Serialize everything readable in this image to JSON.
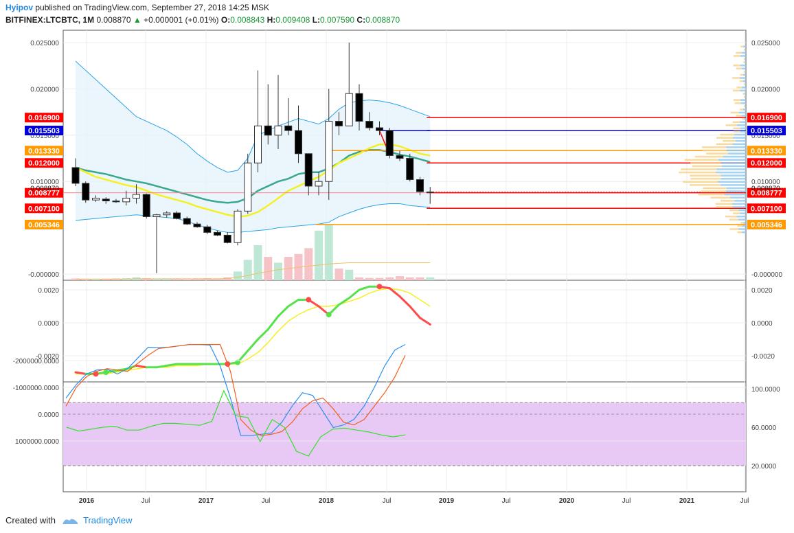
{
  "header": {
    "user": "Hyipov",
    "published": "published on TradingView.com, September 27, 2018 14:25 MSK",
    "symbol": "BITFINEX:LTCBTC, 1M",
    "last": "0.008870",
    "change": "+0.000001 (+0.01%)",
    "o_label": "O:",
    "o": "0.008843",
    "h_label": "H:",
    "h": "0.009408",
    "l_label": "L:",
    "l": "0.007590",
    "c_label": "C:",
    "c": "0.008870"
  },
  "footer": {
    "created": "Created with",
    "brand": "TradingView"
  },
  "colors": {
    "up": "#ffffff",
    "down": "#000000",
    "red": "#ff0000",
    "blue": "#0000dd",
    "orange": "#ff9900",
    "band": "#29a3e6",
    "mid": "#3aa88e",
    "yellow": "#f5f024"
  },
  "chart_data": [
    {
      "type": "candlestick",
      "panel": "price",
      "x_labels": [
        "2016",
        "Jul",
        "2017",
        "Jul",
        "2018",
        "Jul",
        "2019",
        "Jul",
        "2020",
        "Jul",
        "2021",
        "Jul"
      ],
      "y_tick_labels": [
        "0.025000",
        "0.020000",
        "0.015000",
        "0.010000",
        "-0.000000"
      ],
      "y_ticks": [
        0.025,
        0.02,
        0.015,
        0.01,
        0.0
      ],
      "ylim": [
        0.0,
        0.0255
      ],
      "candles": [
        {
          "o": 0.0115,
          "h": 0.0125,
          "l": 0.0095,
          "c": 0.0098
        },
        {
          "o": 0.0098,
          "h": 0.01,
          "l": 0.0077,
          "c": 0.008
        },
        {
          "o": 0.008,
          "h": 0.0085,
          "l": 0.0078,
          "c": 0.0082
        },
        {
          "o": 0.0081,
          "h": 0.0083,
          "l": 0.0076,
          "c": 0.0079
        },
        {
          "o": 0.0079,
          "h": 0.0081,
          "l": 0.0077,
          "c": 0.0078
        },
        {
          "o": 0.0078,
          "h": 0.009,
          "l": 0.0074,
          "c": 0.0082
        },
        {
          "o": 0.0082,
          "h": 0.0097,
          "l": 0.0076,
          "c": 0.0086
        },
        {
          "o": 0.0086,
          "h": 0.0087,
          "l": 0.006,
          "c": 0.0062
        },
        {
          "o": 0.0062,
          "h": 0.0065,
          "l": 0.0001,
          "c": 0.0064
        },
        {
          "o": 0.0064,
          "h": 0.0068,
          "l": 0.0061,
          "c": 0.0066
        },
        {
          "o": 0.0066,
          "h": 0.0068,
          "l": 0.0059,
          "c": 0.006
        },
        {
          "o": 0.006,
          "h": 0.0062,
          "l": 0.0053,
          "c": 0.0054
        },
        {
          "o": 0.0054,
          "h": 0.0056,
          "l": 0.005,
          "c": 0.0051
        },
        {
          "o": 0.0051,
          "h": 0.0053,
          "l": 0.0043,
          "c": 0.0045
        },
        {
          "o": 0.0045,
          "h": 0.0047,
          "l": 0.0041,
          "c": 0.0042
        },
        {
          "o": 0.0042,
          "h": 0.0045,
          "l": 0.0033,
          "c": 0.0034
        },
        {
          "o": 0.0034,
          "h": 0.007,
          "l": 0.0031,
          "c": 0.0068
        },
        {
          "o": 0.0068,
          "h": 0.013,
          "l": 0.0065,
          "c": 0.012
        },
        {
          "o": 0.012,
          "h": 0.022,
          "l": 0.011,
          "c": 0.016
        },
        {
          "o": 0.016,
          "h": 0.0205,
          "l": 0.014,
          "c": 0.015
        },
        {
          "o": 0.015,
          "h": 0.0215,
          "l": 0.0135,
          "c": 0.016
        },
        {
          "o": 0.016,
          "h": 0.019,
          "l": 0.015,
          "c": 0.0155
        },
        {
          "o": 0.0155,
          "h": 0.0182,
          "l": 0.012,
          "c": 0.013
        },
        {
          "o": 0.013,
          "h": 0.013,
          "l": 0.0085,
          "c": 0.0095
        },
        {
          "o": 0.0095,
          "h": 0.011,
          "l": 0.0085,
          "c": 0.01
        },
        {
          "o": 0.01,
          "h": 0.02,
          "l": 0.008,
          "c": 0.0165
        },
        {
          "o": 0.0165,
          "h": 0.0175,
          "l": 0.015,
          "c": 0.016
        },
        {
          "o": 0.016,
          "h": 0.025,
          "l": 0.016,
          "c": 0.0195
        },
        {
          "o": 0.0195,
          "h": 0.0205,
          "l": 0.0155,
          "c": 0.0165
        },
        {
          "o": 0.0165,
          "h": 0.0175,
          "l": 0.0155,
          "c": 0.0158
        },
        {
          "o": 0.0158,
          "h": 0.0165,
          "l": 0.015,
          "c": 0.0155
        },
        {
          "o": 0.0155,
          "h": 0.0158,
          "l": 0.0125,
          "c": 0.0128
        },
        {
          "o": 0.0128,
          "h": 0.0133,
          "l": 0.0122,
          "c": 0.0125
        },
        {
          "o": 0.0125,
          "h": 0.013,
          "l": 0.01,
          "c": 0.0102
        },
        {
          "o": 0.0102,
          "h": 0.0105,
          "l": 0.0085,
          "c": 0.0089
        },
        {
          "o": 0.00884,
          "h": 0.00941,
          "l": 0.00759,
          "c": 0.00887
        }
      ],
      "volume": [
        0.3,
        0.25,
        0.2,
        0.25,
        0.3,
        0.35,
        0.5,
        0.35,
        0.25,
        0.3,
        0.2,
        0.15,
        0.3,
        0.35,
        0.3,
        0.5,
        1.5,
        3.5,
        6.0,
        4.0,
        3.0,
        4.0,
        4.5,
        5.5,
        8.5,
        9.5,
        2.0,
        1.8,
        0.5,
        0.4,
        0.4,
        0.5,
        0.7,
        0.5,
        0.5,
        0.5
      ],
      "bb_upper": [
        0.023,
        0.022,
        0.021,
        0.02,
        0.019,
        0.018,
        0.017,
        0.0165,
        0.016,
        0.0155,
        0.0148,
        0.014,
        0.013,
        0.0122,
        0.0115,
        0.011,
        0.0112,
        0.0125,
        0.015,
        0.0155,
        0.016,
        0.0164,
        0.0168,
        0.0165,
        0.0162,
        0.0168,
        0.0178,
        0.0185,
        0.0187,
        0.0188,
        0.0187,
        0.0185,
        0.0182,
        0.0178,
        0.0174,
        0.017
      ],
      "bb_middle": [
        0.0115,
        0.0112,
        0.011,
        0.0108,
        0.0105,
        0.0102,
        0.01,
        0.0098,
        0.0095,
        0.0092,
        0.0089,
        0.0086,
        0.0083,
        0.008,
        0.0078,
        0.0077,
        0.0078,
        0.0082,
        0.009,
        0.0095,
        0.01,
        0.0103,
        0.0108,
        0.011,
        0.011,
        0.0114,
        0.012,
        0.0128,
        0.0132,
        0.0134,
        0.0134,
        0.0132,
        0.0129,
        0.0127,
        0.0124,
        0.0121
      ],
      "bb_lower": [
        0.0058,
        0.0059,
        0.006,
        0.0061,
        0.0062,
        0.0063,
        0.0064,
        0.0063,
        0.0062,
        0.0061,
        0.006,
        0.0057,
        0.0053,
        0.005,
        0.0047,
        0.0045,
        0.0045,
        0.0046,
        0.0047,
        0.0048,
        0.005,
        0.0051,
        0.0052,
        0.0053,
        0.0054,
        0.0056,
        0.0062,
        0.0066,
        0.007,
        0.0073,
        0.0075,
        0.0076,
        0.0076,
        0.0074,
        0.0073,
        0.0072
      ],
      "ma_yellow": [
        0.0115,
        0.011,
        0.0105,
        0.0102,
        0.0099,
        0.0096,
        0.0094,
        0.009,
        0.0086,
        0.0083,
        0.008,
        0.0077,
        0.0073,
        0.007,
        0.0067,
        0.0064,
        0.0062,
        0.0063,
        0.0067,
        0.0074,
        0.0082,
        0.009,
        0.0095,
        0.01,
        0.0105,
        0.0112,
        0.012,
        0.0125,
        0.013,
        0.0136,
        0.014,
        0.014,
        0.0138,
        0.0134,
        0.013,
        0.0128
      ],
      "volume_ma": [
        0.2,
        0.2,
        0.2,
        0.2,
        0.2,
        0.2,
        0.25,
        0.25,
        0.25,
        0.25,
        0.25,
        0.25,
        0.25,
        0.25,
        0.25,
        0.3,
        0.5,
        0.8,
        1.2,
        1.5,
        1.8,
        2.0,
        2.2,
        2.4,
        2.6,
        2.8,
        2.9,
        3.0,
        3.0,
        3.0,
        3.0,
        3.0,
        3.0,
        3.0,
        3.0,
        3.0
      ],
      "levels": [
        {
          "value": 0.0169,
          "label": "0.016900",
          "color": "#ff0000"
        },
        {
          "value": 0.015503,
          "label": "0.015503",
          "color": "#0000dd"
        },
        {
          "value": 0.01333,
          "label": "0.013330",
          "color": "#ff9900"
        },
        {
          "value": 0.012,
          "label": "0.012000",
          "color": "#ff0000"
        },
        {
          "value": 0.008777,
          "label": "0.008777",
          "color": "#ff0000"
        },
        {
          "value": 0.0071,
          "label": "0.007100",
          "color": "#ff0000"
        },
        {
          "value": 0.005346,
          "label": "0.005346",
          "color": "#ff9900"
        }
      ],
      "last_price": {
        "value": 0.00887,
        "label": "0.008870"
      }
    },
    {
      "type": "line",
      "panel": "oscillator",
      "y_tick_labels": [
        "0.0020",
        "0.0000",
        "-0.0020"
      ],
      "y_ticks": [
        0.002,
        0.0,
        -0.002
      ],
      "ylim": [
        -0.0037,
        0.0025
      ],
      "series": [
        {
          "values": [
            -0.003,
            -0.0031,
            -0.0031,
            -0.003,
            -0.0029,
            -0.0028,
            -0.0026,
            -0.0027,
            -0.0027,
            -0.0026,
            -0.0025,
            -0.0025,
            -0.0025,
            -0.0025,
            -0.0025,
            -0.0025,
            -0.0024,
            -0.0017,
            -0.001,
            -0.0004,
            0.0004,
            0.001,
            0.0014,
            0.0014,
            0.001,
            0.0005,
            0.0011,
            0.0015,
            0.002,
            0.0022,
            0.0022,
            0.0021,
            0.0016,
            0.001,
            0.0003,
            -0.0001
          ]
        },
        {
          "values": [
            -0.0031,
            -0.0031,
            -0.0031,
            -0.0031,
            -0.003,
            -0.0029,
            -0.0028,
            -0.0027,
            -0.0027,
            -0.0027,
            -0.0026,
            -0.0026,
            -0.0026,
            -0.0025,
            -0.0025,
            -0.0025,
            -0.0025,
            -0.0022,
            -0.0018,
            -0.0012,
            -0.0005,
            0.0001,
            0.0005,
            0.0008,
            0.001,
            0.001,
            0.0011,
            0.0013,
            0.0015,
            0.0018,
            0.002,
            0.0021,
            0.002,
            0.0018,
            0.0014,
            0.001
          ]
        }
      ]
    },
    {
      "type": "line",
      "panel": "momentum",
      "y_tick_labels_left": [
        "1000000.0000",
        "0.0000",
        "-1000000.0000",
        "-2000000.0000"
      ],
      "y_ticks_left": [
        1000000,
        0,
        -1000000,
        -2000000
      ],
      "ylim_left": [
        -2900000,
        1100000
      ],
      "y_tick_labels_right": [
        "100.0000",
        "60.0000",
        "20.0000"
      ],
      "y_ticks_right": [
        100,
        60,
        20
      ],
      "ylim_right": [
        2.5,
        102.5
      ],
      "band_right": [
        20,
        80
      ],
      "series": [
        {
          "axis": "left",
          "values": [
            -600000,
            -1100000,
            -1500000,
            -1650000,
            -1680000,
            -1500000,
            -1700000,
            -2100000,
            -2500000,
            -2480000,
            -2500000,
            -2550000,
            -2600000,
            -2600000,
            -2580000,
            -1800000,
            -600000,
            800000,
            800000,
            750000,
            700000,
            300000,
            -300000,
            -800000,
            -700000,
            -100000,
            500000,
            400000,
            200000,
            -300000,
            -1000000,
            -1800000,
            -2400000,
            -2600000
          ]
        },
        {
          "axis": "left",
          "values": [
            -300000,
            -1000000,
            -1400000,
            -1600000,
            -1700000,
            -1650000,
            -1600000,
            -1900000,
            -2200000,
            -2450000,
            -2500000,
            -2550000,
            -2600000,
            -2600000,
            -2600000,
            -2600000,
            -1600000,
            200000,
            600000,
            800000,
            750000,
            650000,
            300000,
            -200000,
            -500000,
            -600000,
            -200000,
            300000,
            400000,
            200000,
            -300000,
            -800000,
            -1400000,
            -2200000
          ]
        },
        {
          "axis": "right",
          "values": [
            60,
            56,
            58,
            60,
            61,
            57,
            57,
            61,
            64,
            64,
            63,
            62,
            66,
            98,
            72,
            70,
            45,
            68,
            60,
            35,
            30,
            50,
            58,
            59,
            57,
            55,
            52,
            50,
            52
          ]
        }
      ]
    }
  ]
}
